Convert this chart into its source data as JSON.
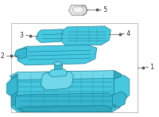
{
  "bg_color": "#ffffff",
  "part_color": "#45c8e0",
  "part_dark": "#2eaabf",
  "part_mid": "#38b8d0",
  "part_light": "#70d8ea",
  "edge_color": "#1a7a90",
  "line_color": "#555555",
  "box_edge": "#bbbbbb",
  "label_fs": 5.5,
  "dot_size": 1.8,
  "lw": 0.5
}
